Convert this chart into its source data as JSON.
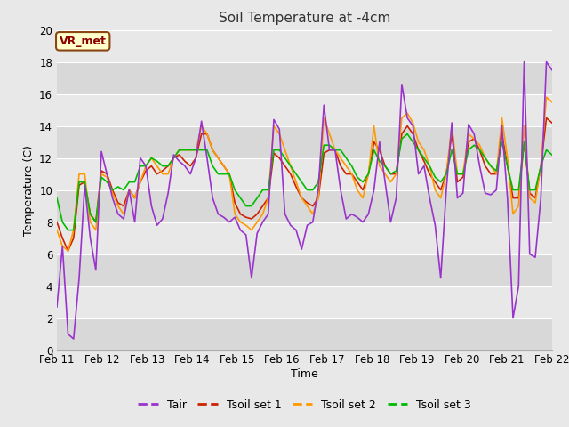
{
  "title": "Soil Temperature at -4cm",
  "xlabel": "Time",
  "ylabel": "Temperature (C)",
  "ylim": [
    0,
    20
  ],
  "xtick_labels": [
    "Feb 11",
    "Feb 12",
    "Feb 13",
    "Feb 14",
    "Feb 15",
    "Feb 16",
    "Feb 17",
    "Feb 18",
    "Feb 19",
    "Feb 20",
    "Feb 21",
    "Feb 22"
  ],
  "ytick_labels": [
    0,
    2,
    4,
    6,
    8,
    10,
    12,
    14,
    16,
    18,
    20
  ],
  "annotation_text": "VR_met",
  "fig_bg_color": "#e8e8e8",
  "plot_bg_light": "#e8e8e8",
  "plot_bg_dark": "#d8d8d8",
  "grid_color": "#ffffff",
  "line_colors": {
    "Tair": "#9933cc",
    "Tsoil1": "#cc2200",
    "Tsoil2": "#ff9900",
    "Tsoil3": "#00bb00"
  },
  "legend_labels": [
    "Tair",
    "Tsoil set 1",
    "Tsoil set 2",
    "Tsoil set 3"
  ],
  "Tair": [
    2.7,
    6.5,
    1.0,
    0.7,
    4.5,
    10.3,
    7.0,
    5.0,
    12.4,
    11.0,
    9.5,
    8.5,
    8.2,
    10.0,
    8.0,
    12.0,
    11.5,
    9.0,
    7.8,
    8.2,
    9.8,
    12.2,
    11.8,
    11.5,
    11.0,
    12.0,
    14.3,
    12.0,
    9.5,
    8.5,
    8.3,
    8.0,
    8.3,
    7.5,
    7.2,
    4.5,
    7.3,
    8.0,
    8.5,
    14.4,
    13.8,
    8.5,
    7.8,
    7.5,
    6.3,
    7.8,
    8.0,
    10.1,
    15.3,
    12.5,
    12.5,
    10.0,
    8.2,
    8.5,
    8.3,
    8.0,
    8.5,
    10.0,
    13.0,
    10.5,
    8.0,
    9.5,
    16.6,
    14.5,
    14.0,
    11.0,
    11.5,
    9.5,
    7.8,
    4.5,
    10.0,
    14.2,
    9.5,
    9.8,
    14.1,
    13.5,
    11.5,
    9.8,
    9.7,
    10.0,
    14.0,
    9.5,
    2.0,
    4.0,
    18.0,
    6.0,
    5.8,
    9.5,
    18.0,
    17.5
  ],
  "Tsoil1": [
    8.0,
    7.0,
    6.2,
    7.0,
    10.3,
    10.5,
    8.5,
    8.0,
    11.2,
    11.0,
    10.0,
    9.2,
    9.0,
    10.0,
    9.5,
    10.5,
    11.2,
    11.5,
    11.0,
    11.2,
    11.5,
    12.0,
    12.2,
    11.8,
    11.5,
    12.0,
    13.5,
    13.5,
    12.5,
    12.0,
    11.5,
    11.0,
    9.2,
    8.5,
    8.3,
    8.2,
    8.5,
    9.0,
    9.5,
    12.3,
    12.0,
    11.5,
    11.0,
    10.2,
    9.5,
    9.2,
    9.0,
    9.5,
    12.3,
    12.5,
    12.5,
    11.5,
    11.0,
    11.0,
    10.5,
    10.0,
    11.0,
    13.0,
    12.5,
    11.5,
    11.0,
    11.0,
    13.5,
    14.0,
    13.5,
    12.5,
    11.8,
    11.0,
    10.5,
    10.0,
    11.0,
    13.5,
    10.5,
    10.8,
    13.0,
    13.2,
    12.5,
    11.5,
    11.0,
    11.0,
    13.5,
    11.5,
    9.5,
    9.5,
    13.0,
    9.8,
    9.5,
    11.5,
    14.5,
    14.2
  ],
  "Tsoil2": [
    7.5,
    6.5,
    6.2,
    7.5,
    11.0,
    11.0,
    8.0,
    7.5,
    11.0,
    10.8,
    9.8,
    9.0,
    8.5,
    10.0,
    9.5,
    10.5,
    11.5,
    12.0,
    11.5,
    11.0,
    11.0,
    12.0,
    12.5,
    12.5,
    12.5,
    12.5,
    14.0,
    13.5,
    12.5,
    12.0,
    11.5,
    11.0,
    8.5,
    8.0,
    7.8,
    7.5,
    8.0,
    8.5,
    9.5,
    14.0,
    13.5,
    12.5,
    11.5,
    10.5,
    9.5,
    9.0,
    8.5,
    9.5,
    14.5,
    13.5,
    12.5,
    12.0,
    11.5,
    11.0,
    10.0,
    9.5,
    11.0,
    14.0,
    11.5,
    11.0,
    10.5,
    11.0,
    14.5,
    14.8,
    14.2,
    13.0,
    12.5,
    11.5,
    10.0,
    9.5,
    11.0,
    14.0,
    11.0,
    11.0,
    13.5,
    13.2,
    12.8,
    12.0,
    11.5,
    11.0,
    14.5,
    12.0,
    8.5,
    9.0,
    14.0,
    9.5,
    9.2,
    11.5,
    15.8,
    15.5
  ],
  "Tsoil3": [
    9.5,
    8.0,
    7.5,
    7.5,
    10.5,
    10.5,
    8.5,
    8.0,
    10.8,
    10.5,
    10.0,
    10.2,
    10.0,
    10.5,
    10.5,
    11.5,
    11.5,
    12.0,
    11.8,
    11.5,
    11.5,
    12.0,
    12.5,
    12.5,
    12.5,
    12.5,
    12.5,
    12.5,
    11.5,
    11.0,
    11.0,
    11.0,
    10.0,
    9.5,
    9.0,
    9.0,
    9.5,
    10.0,
    10.0,
    12.5,
    12.5,
    12.0,
    11.5,
    11.0,
    10.5,
    10.0,
    10.0,
    10.5,
    12.8,
    12.8,
    12.5,
    12.5,
    12.0,
    11.5,
    10.8,
    10.5,
    11.0,
    12.5,
    11.8,
    11.5,
    11.0,
    11.2,
    13.2,
    13.5,
    13.0,
    12.5,
    12.0,
    11.5,
    10.8,
    10.5,
    11.0,
    12.5,
    11.0,
    11.0,
    12.5,
    12.8,
    12.5,
    12.0,
    11.5,
    11.2,
    13.0,
    11.5,
    10.0,
    10.0,
    13.0,
    10.0,
    10.0,
    11.5,
    12.5,
    12.2
  ]
}
